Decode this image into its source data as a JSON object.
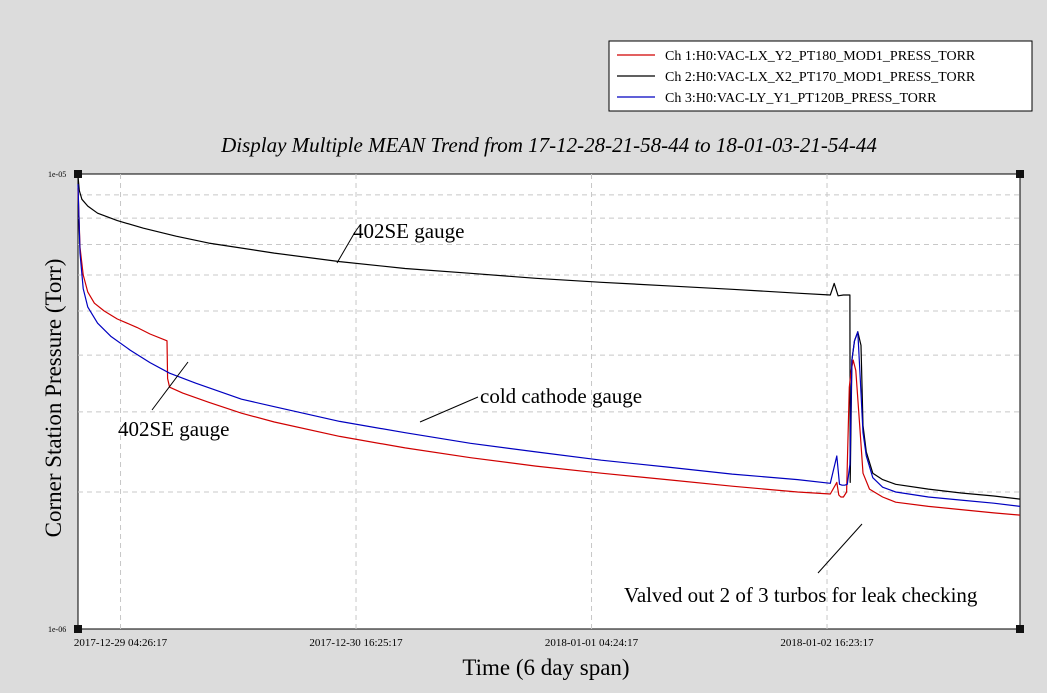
{
  "chart_data": {
    "type": "line",
    "title": "Display Multiple MEAN Trend from 17-12-28-21-58-44 to 18-01-03-21-54-44",
    "xlabel": "Time (6 day span)",
    "ylabel": "Corner Station Pressure (Torr)",
    "yscale": "log",
    "ylim": [
      1e-06,
      1e-05
    ],
    "ytick_labels": [
      "1e-05",
      "1e-06"
    ],
    "xlim_hours": [
      0,
      144
    ],
    "xtick_labels": [
      "2017-12-29 04:26:17",
      "2017-12-30 16:25:17",
      "2018-01-01 04:24:17",
      "2018-01-02 16:23:17"
    ],
    "xtick_hours": [
      6.5,
      42.5,
      78.5,
      114.5
    ],
    "x_unit": "hours since 17-12-28-21-58-44",
    "grid": true,
    "legend_position": "top-right",
    "series": [
      {
        "name": "Ch 1:H0:VAC-LX_Y2_PT180_MOD1_PRESS_TORR",
        "color": "#d00000",
        "x": [
          0,
          0.3,
          0.8,
          1.5,
          2.5,
          4,
          6,
          9,
          11,
          13.6,
          13.7,
          14,
          16,
          20,
          25,
          30,
          40,
          50,
          60,
          70,
          80,
          90,
          100,
          110,
          115,
          116,
          116.3,
          116.6,
          117,
          117.5,
          117.9,
          118.2,
          118.5,
          118.9,
          119.5,
          120,
          121,
          123,
          125,
          130,
          135,
          140,
          144
        ],
        "y": [
          9.3e-06,
          6.9e-06,
          6e-06,
          5.5e-06,
          5.2e-06,
          5e-06,
          4.8e-06,
          4.6e-06,
          4.45e-06,
          4.3e-06,
          3.55e-06,
          3.4e-06,
          3.3e-06,
          3.15e-06,
          2.98e-06,
          2.85e-06,
          2.65e-06,
          2.5e-06,
          2.38e-06,
          2.28e-06,
          2.2e-06,
          2.13e-06,
          2.06e-06,
          2e-06,
          1.98e-06,
          2.1e-06,
          1.97e-06,
          1.95e-06,
          1.95e-06,
          2e-06,
          3.4e-06,
          3.7e-06,
          3.9e-06,
          3.7e-06,
          2.8e-06,
          2.2e-06,
          2.03e-06,
          1.95e-06,
          1.9e-06,
          1.86e-06,
          1.83e-06,
          1.8e-06,
          1.78e-06
        ]
      },
      {
        "name": "Ch 2:H0:VAC-LX_X2_PT170_MOD1_PRESS_TORR",
        "color": "#000000",
        "x": [
          0,
          0.2,
          0.6,
          1.5,
          3,
          6,
          10,
          15,
          20,
          30,
          40,
          50,
          60,
          70,
          80,
          90,
          100,
          110,
          115,
          115.6,
          116.2,
          117,
          118,
          118.05,
          118.3,
          118.7,
          119.2,
          119.7,
          120,
          120.5,
          121.5,
          123,
          125,
          130,
          135,
          140,
          144
        ],
        "y": [
          9.9e-06,
          9.2e-06,
          8.8e-06,
          8.5e-06,
          8.2e-06,
          7.9e-06,
          7.6e-06,
          7.3e-06,
          7.05e-06,
          6.7e-06,
          6.42e-06,
          6.2e-06,
          6.05e-06,
          5.9e-06,
          5.78e-06,
          5.68e-06,
          5.58e-06,
          5.47e-06,
          5.42e-06,
          5.75e-06,
          5.4e-06,
          5.42e-06,
          5.42e-06,
          2.1e-06,
          3.9e-06,
          4.3e-06,
          4.5e-06,
          4.2e-06,
          2.8e-06,
          2.45e-06,
          2.2e-06,
          2.13e-06,
          2.08e-06,
          2.03e-06,
          1.99e-06,
          1.96e-06,
          1.93e-06
        ]
      },
      {
        "name": "Ch 3:H0:VAC-LY_Y1_PT120B_PRESS_TORR",
        "color": "#0000c0",
        "x": [
          0,
          0.3,
          0.8,
          1.5,
          3,
          5,
          8,
          11,
          14,
          18,
          25,
          30,
          40,
          50,
          60,
          70,
          80,
          90,
          100,
          110,
          115,
          116,
          116.4,
          116.8,
          117.2,
          117.6,
          118,
          118.3,
          118.7,
          119.2,
          119.6,
          120,
          120.5,
          121.5,
          123,
          125,
          130,
          135,
          140,
          144
        ],
        "y": [
          9.5e-06,
          6.7e-06,
          5.6e-06,
          5.1e-06,
          4.7e-06,
          4.4e-06,
          4.1e-06,
          3.85e-06,
          3.65e-06,
          3.47e-06,
          3.2e-06,
          3.08e-06,
          2.86e-06,
          2.7e-06,
          2.56e-06,
          2.45e-06,
          2.35e-06,
          2.27e-06,
          2.19e-06,
          2.13e-06,
          2.09e-06,
          2.4e-06,
          2.08e-06,
          2.07e-06,
          2.07e-06,
          2.08e-06,
          2.3e-06,
          3.9e-06,
          4.3e-06,
          4.5e-06,
          3.5e-06,
          2.7e-06,
          2.4e-06,
          2.15e-06,
          2.05e-06,
          2e-06,
          1.95e-06,
          1.92e-06,
          1.89e-06,
          1.86e-06
        ]
      }
    ],
    "annotations": [
      {
        "text": "402SE gauge",
        "target": {
          "x": 33,
          "y": 6.3e-06
        }
      },
      {
        "text": "402SE gauge",
        "target": {
          "x": 13.8,
          "y": 3.4e-06
        }
      },
      {
        "text": "cold cathode gauge",
        "target": {
          "x": 42,
          "y": 2.85e-06
        }
      },
      {
        "text": "Valved out 2 of 3 turbos for leak checking",
        "target": {
          "x": 118,
          "y": 1.95e-06
        }
      }
    ]
  }
}
